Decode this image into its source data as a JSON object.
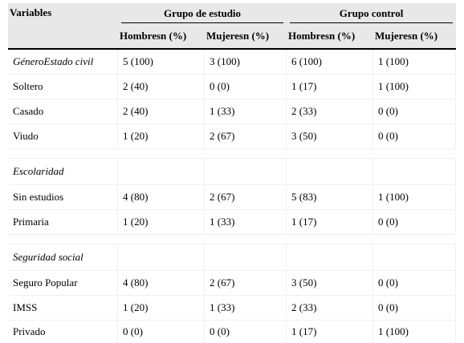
{
  "table": {
    "header": {
      "variables": "Variables",
      "group_study": "Grupo de estudio",
      "group_control": "Grupo control",
      "sub": [
        "Hombresn (%)",
        "Mujeresn (%)",
        "Hombresn (%)",
        "Mujeresn (%)"
      ]
    },
    "rows": [
      {
        "label": "GéneroEstado civil",
        "values": [
          "5 (100)",
          "3 (100)",
          "6 (100)",
          "1 (100)"
        ]
      },
      {
        "label": "Soltero",
        "values": [
          "2 (40)",
          "0 (0)",
          "1 (17)",
          "1 (100)"
        ]
      },
      {
        "label": "Casado",
        "values": [
          "2 (40)",
          "1 (33)",
          "2 (33)",
          "0 (0)"
        ]
      },
      {
        "label": "Viudo",
        "values": [
          "1 (20)",
          "2 (67)",
          "3 (50)",
          "0 (0)"
        ]
      },
      {
        "label": "Escolaridad",
        "values": [
          "",
          "",
          "",
          ""
        ]
      },
      {
        "label": "Sin estudios",
        "values": [
          "4 (80)",
          "2 (67)",
          "5 (83)",
          "1 (100)"
        ]
      },
      {
        "label": "Primaria",
        "values": [
          "1 (20)",
          "1 (33)",
          "1 (17)",
          "0 (0)"
        ]
      },
      {
        "label": "Seguridad social",
        "values": [
          "",
          "",
          "",
          ""
        ]
      },
      {
        "label": "Seguro Popular",
        "values": [
          "4 (80)",
          "2 (67)",
          "3 (50)",
          "0 (0)"
        ]
      },
      {
        "label": "IMSS",
        "values": [
          "1 (20)",
          "1 (33)",
          "2 (33)",
          "0 (0)"
        ]
      },
      {
        "label": "Privado",
        "values": [
          "0 (0)",
          "0 (0)",
          "1 (17)",
          "1 (100)"
        ]
      }
    ]
  }
}
